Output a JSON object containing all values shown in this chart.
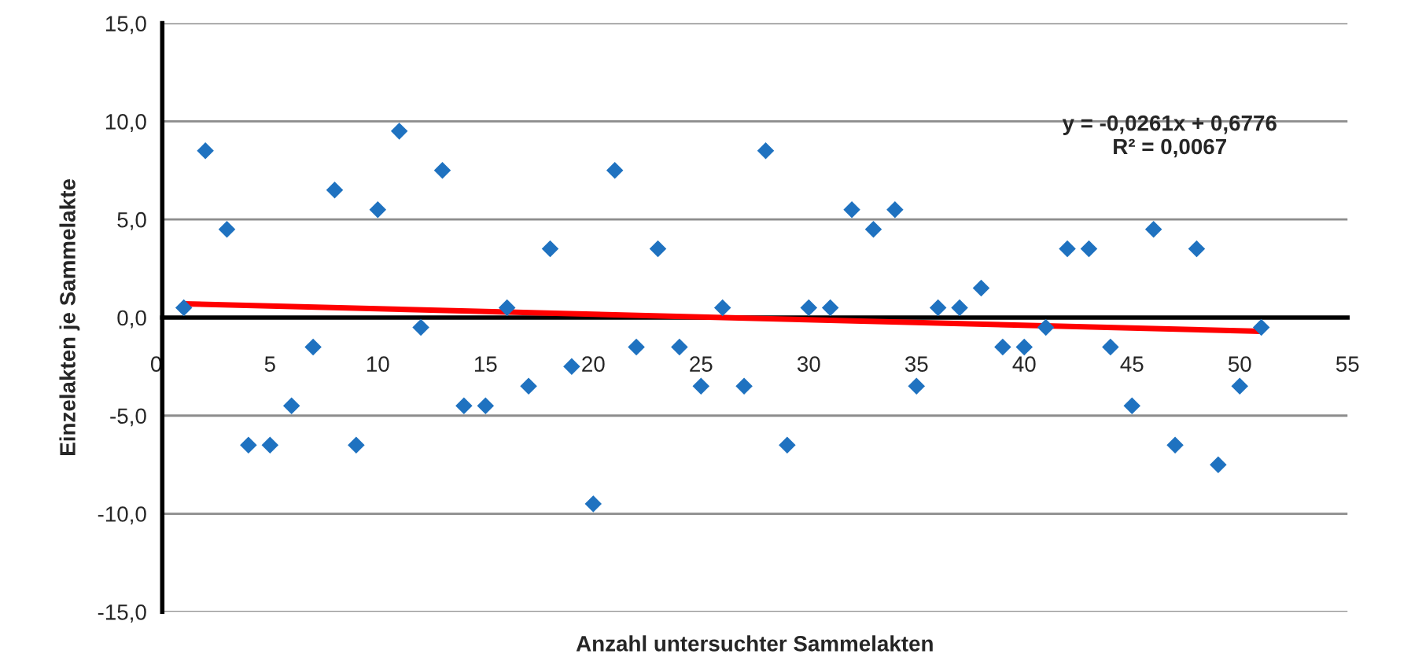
{
  "chart_data": {
    "type": "scatter",
    "xlabel": "Anzahl untersuchter Sammelakten",
    "ylabel": "Einzelakten je Sammelakte",
    "annotations": [
      "y = -0,0261x + 0,6776\nR² = 0,0067"
    ],
    "series": [
      {
        "type": "scatter",
        "color": "#1f72c0",
        "marker": "diamond",
        "x": [
          1,
          2,
          3,
          4,
          5,
          6,
          7,
          8,
          9,
          10,
          11,
          12,
          13,
          14,
          15,
          16,
          17,
          18,
          19,
          20,
          21,
          22,
          23,
          24,
          25,
          26,
          27,
          28,
          29,
          30,
          31,
          32,
          33,
          34,
          35,
          36,
          37,
          38,
          39,
          40,
          41,
          42,
          43,
          44,
          45,
          46,
          47,
          48,
          49,
          50,
          51
        ],
        "values": [
          0.5,
          8.5,
          4.5,
          -6.5,
          -6.5,
          -4.5,
          -1.5,
          6.5,
          -6.5,
          5.5,
          9.5,
          -0.5,
          7.5,
          -4.5,
          -4.5,
          0.5,
          -3.5,
          3.5,
          -2.5,
          -9.5,
          7.5,
          -1.5,
          3.5,
          -1.5,
          -3.5,
          0.5,
          -3.5,
          8.5,
          -6.5,
          0.5,
          0.5,
          5.5,
          4.5,
          5.5,
          -3.5,
          0.5,
          0.5,
          1.5,
          -1.5,
          -1.5,
          -0.5,
          3.5,
          3.5,
          -1.5,
          -4.5,
          4.5,
          -6.5,
          3.5,
          -7.5,
          -3.5,
          -0.5
        ]
      },
      {
        "type": "line",
        "color": "#ff0000",
        "marker": "none",
        "line_style": "solid",
        "x": [
          1,
          51
        ],
        "values": [
          0.7,
          -0.7
        ]
      }
    ],
    "xlim": [
      0,
      55
    ],
    "xticks": [
      0,
      5,
      10,
      15,
      20,
      25,
      30,
      35,
      40,
      45,
      50,
      55
    ],
    "ylim": [
      -15,
      15
    ],
    "yticks": [
      {
        "value": -15,
        "label": "-15,0"
      },
      {
        "value": -10,
        "label": "-10,0"
      },
      {
        "value": -5,
        "label": "-5,0"
      },
      {
        "value": 0,
        "label": "0,0"
      },
      {
        "value": 5,
        "label": "5,0"
      },
      {
        "value": 10,
        "label": "10,0"
      },
      {
        "value": 15,
        "label": "15,0"
      }
    ],
    "grid": "y",
    "legend": false
  }
}
